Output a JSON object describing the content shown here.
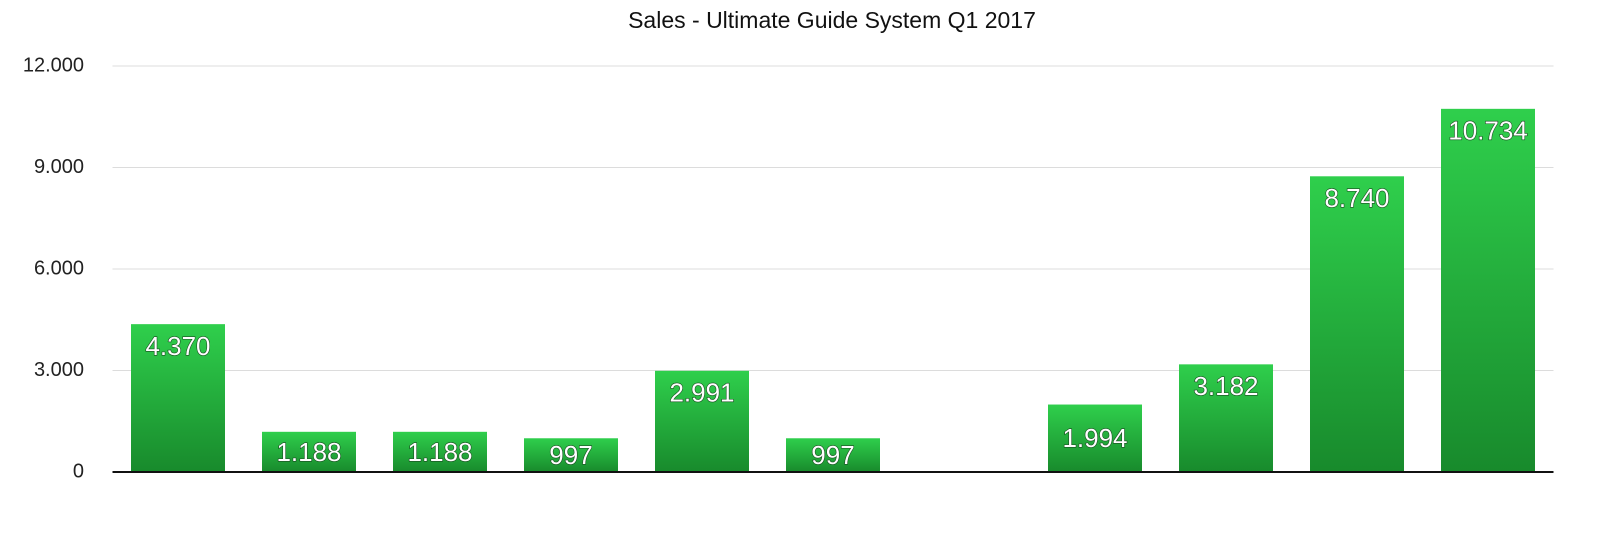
{
  "chart_data": {
    "type": "bar",
    "title": "Sales - Ultimate Guide System Q1 2017",
    "categories": [
      null,
      null,
      null,
      null,
      null,
      null,
      null,
      null,
      null,
      null,
      null
    ],
    "values": [
      4370,
      1188,
      1188,
      997,
      2991,
      997,
      null,
      1994,
      3182,
      8740,
      10734
    ],
    "value_labels": [
      "4.370",
      "1.188",
      "1.188",
      "997",
      "2.991",
      "997",
      null,
      "1.994",
      "3.182",
      "8.740",
      "10.734"
    ],
    "color": "#22b33c",
    "ylim": [
      0,
      12000
    ],
    "yticks": [
      0,
      {
        "value": 3000,
        "label": "3.000"
      },
      {
        "value": 6000,
        "label": "6.000"
      },
      {
        "value": 9000,
        "label": "9.000"
      },
      {
        "value": 12000,
        "label": "12.000"
      }
    ],
    "grid": true
  }
}
